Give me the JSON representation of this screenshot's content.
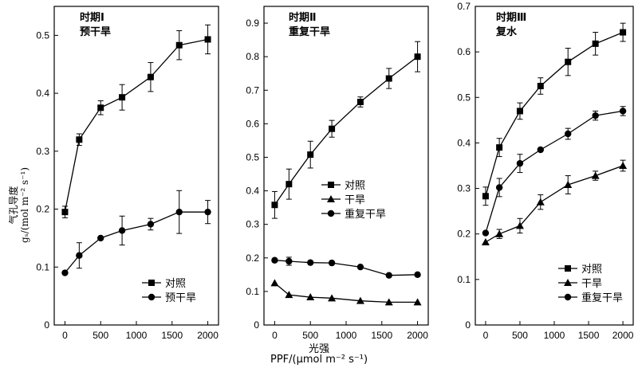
{
  "chart_data": [
    {
      "type": "line",
      "title": "时期Ⅰ",
      "subtitle": "预干旱",
      "ylim": [
        0,
        0.55
      ],
      "yticks": [
        0,
        0.1,
        0.2,
        0.3,
        0.4,
        0.5
      ],
      "ytick_labels": [
        "0",
        "0.1",
        "0.2",
        "0.3",
        "0.4",
        "0.5"
      ],
      "xlim": [
        -150,
        2150
      ],
      "xticks": [
        0,
        500,
        1000,
        1500,
        2000
      ],
      "legend_position": "bottom-right",
      "series": [
        {
          "name": "对照",
          "marker": "square",
          "x": [
            0,
            200,
            500,
            800,
            1200,
            1600,
            2000
          ],
          "y": [
            0.195,
            0.32,
            0.375,
            0.393,
            0.428,
            0.483,
            0.493
          ],
          "err": [
            0.01,
            0.01,
            0.012,
            0.022,
            0.025,
            0.025,
            0.025
          ]
        },
        {
          "name": "预干旱",
          "marker": "circle",
          "x": [
            0,
            200,
            500,
            800,
            1200,
            1600,
            2000
          ],
          "y": [
            0.09,
            0.12,
            0.15,
            0.163,
            0.174,
            0.195,
            0.195
          ],
          "err": [
            0,
            0.022,
            0,
            0.025,
            0.01,
            0.037,
            0.02
          ]
        }
      ]
    },
    {
      "type": "line",
      "title": "时期Ⅱ",
      "subtitle": "重复干旱",
      "ylim": [
        0,
        0.95
      ],
      "yticks": [
        0,
        0.1,
        0.2,
        0.3,
        0.4,
        0.5,
        0.6,
        0.7,
        0.8,
        0.9
      ],
      "ytick_labels": [
        "0",
        "0.1",
        "0.2",
        "0.3",
        "0.4",
        "0.5",
        "0.6",
        "0.7",
        "0.8",
        "0.9"
      ],
      "xlim": [
        -150,
        2150
      ],
      "xticks": [
        0,
        500,
        1000,
        1500,
        2000
      ],
      "legend_position": "center",
      "series": [
        {
          "name": "对照",
          "marker": "square",
          "x": [
            0,
            200,
            500,
            800,
            1200,
            1600,
            2000
          ],
          "y": [
            0.358,
            0.42,
            0.508,
            0.585,
            0.665,
            0.735,
            0.8
          ],
          "err": [
            0.04,
            0.045,
            0.04,
            0.025,
            0.015,
            0.03,
            0.045
          ]
        },
        {
          "name": "干旱",
          "marker": "triangle",
          "x": [
            0,
            200,
            500,
            800,
            1200,
            1600,
            2000
          ],
          "y": [
            0.125,
            0.09,
            0.083,
            0.08,
            0.072,
            0.068,
            0.068
          ],
          "err": [
            0,
            0,
            0,
            0,
            0,
            0,
            0
          ]
        },
        {
          "name": "重复干旱",
          "marker": "circle",
          "x": [
            0,
            200,
            500,
            800,
            1200,
            1600,
            2000
          ],
          "y": [
            0.193,
            0.19,
            0.186,
            0.185,
            0.173,
            0.148,
            0.15
          ],
          "err": [
            0,
            0.012,
            0,
            0,
            0,
            0,
            0
          ]
        }
      ]
    },
    {
      "type": "line",
      "title": "时期Ⅲ",
      "subtitle": "复水",
      "ylim": [
        0,
        0.7
      ],
      "yticks": [
        0,
        0.1,
        0.2,
        0.3,
        0.4,
        0.5,
        0.6,
        0.7
      ],
      "ytick_labels": [
        "0",
        "0.1",
        "0.2",
        "0.3",
        "0.4",
        "0.5",
        "0.6",
        "0.7"
      ],
      "xlim": [
        -150,
        2150
      ],
      "xticks": [
        0,
        500,
        1000,
        1500,
        2000
      ],
      "legend_position": "bottom-right",
      "series": [
        {
          "name": "对照",
          "marker": "square",
          "x": [
            0,
            200,
            500,
            800,
            1200,
            1600,
            2000
          ],
          "y": [
            0.283,
            0.39,
            0.47,
            0.525,
            0.578,
            0.618,
            0.643
          ],
          "err": [
            0.02,
            0.02,
            0.018,
            0.018,
            0.03,
            0.025,
            0.02
          ]
        },
        {
          "name": "干旱",
          "marker": "triangle",
          "x": [
            0,
            200,
            500,
            800,
            1200,
            1600,
            2000
          ],
          "y": [
            0.182,
            0.2,
            0.218,
            0.27,
            0.308,
            0.328,
            0.35
          ],
          "err": [
            0,
            0.01,
            0.016,
            0.016,
            0.02,
            0.01,
            0.012
          ]
        },
        {
          "name": "重复干旱",
          "marker": "circle",
          "x": [
            0,
            200,
            500,
            800,
            1200,
            1600,
            2000
          ],
          "y": [
            0.202,
            0.302,
            0.355,
            0.385,
            0.42,
            0.46,
            0.47
          ],
          "err": [
            0,
            0.02,
            0.02,
            0,
            0.012,
            0.01,
            0.01
          ]
        }
      ]
    }
  ],
  "shared": {
    "ylabel_top": "气孔导度",
    "ylabel_bottom": "gₛ/(mol m⁻² s⁻¹)",
    "xtitle_main": "光强",
    "xtitle_sub": "PPF/(μmol m⁻² s⁻¹)"
  }
}
